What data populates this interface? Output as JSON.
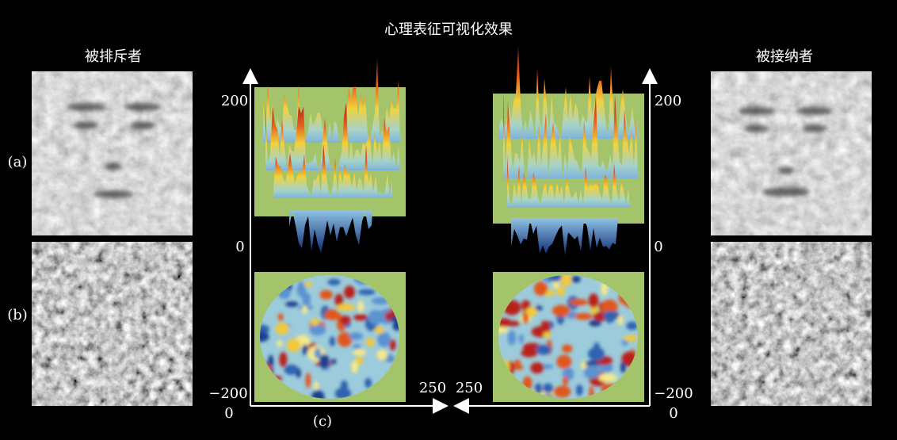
{
  "title": "心理表征可视化效果",
  "row_labels": [
    "(a)",
    "(b)"
  ],
  "panel_label": "(c)",
  "left": {
    "label": "被排斥者",
    "y_ticks": [
      "200",
      "0",
      "−200"
    ],
    "x_start": "0",
    "x_end": "250"
  },
  "right": {
    "label": "被接纳者",
    "y_ticks": [
      "200",
      "0",
      "−200"
    ],
    "x_start": "0",
    "x_end": "250"
  }
}
